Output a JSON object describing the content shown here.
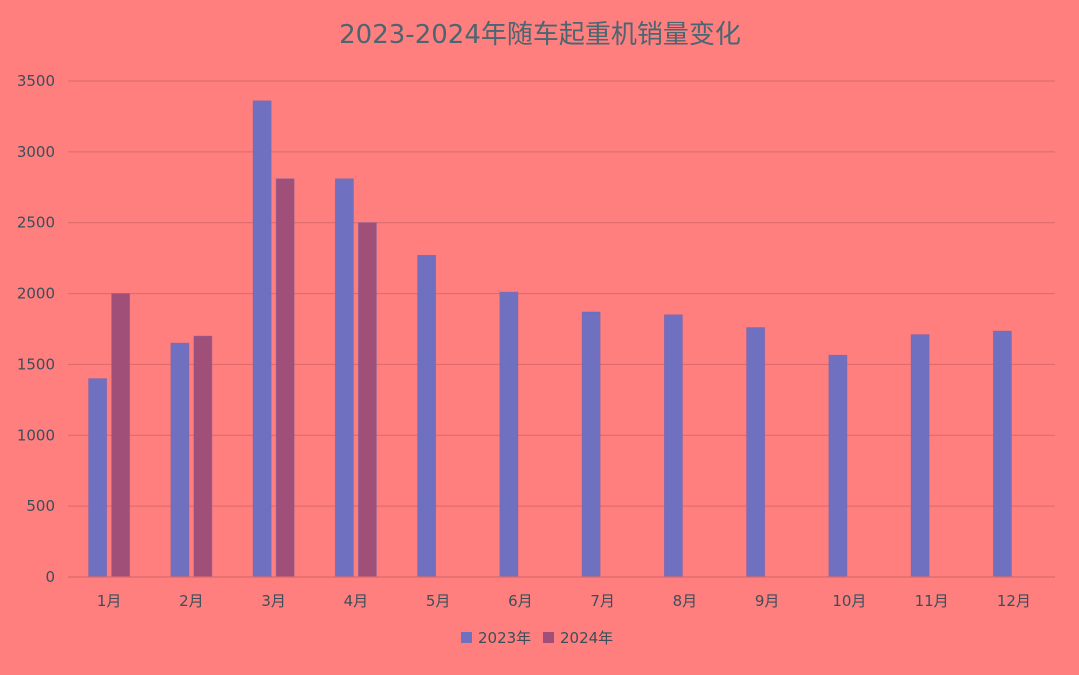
{
  "chart_data": {
    "type": "bar",
    "title": "2023-2024年随车起重机销量变化",
    "xlabel": "",
    "ylabel": "",
    "categories": [
      "1月",
      "2月",
      "3月",
      "4月",
      "5月",
      "6月",
      "7月",
      "8月",
      "9月",
      "10月",
      "11月",
      "12月"
    ],
    "series": [
      {
        "name": "2023年",
        "color": "#7070c0",
        "values": [
          1400,
          1650,
          3360,
          2810,
          2270,
          2010,
          1870,
          1850,
          1760,
          1565,
          1710,
          1735
        ]
      },
      {
        "name": "2024年",
        "color": "#a04f78",
        "values": [
          2000,
          1700,
          2810,
          2500,
          null,
          null,
          null,
          null,
          null,
          null,
          null,
          null
        ]
      }
    ],
    "ylim": [
      0,
      3500
    ],
    "yticks": [
      0,
      500,
      1000,
      1500,
      2000,
      2500,
      3000,
      3500
    ],
    "grid": true,
    "legend_position": "bottom"
  },
  "colors": {
    "background": "#ff7f7f",
    "grid": "#d96a6a",
    "text": "#3b4e5a"
  }
}
